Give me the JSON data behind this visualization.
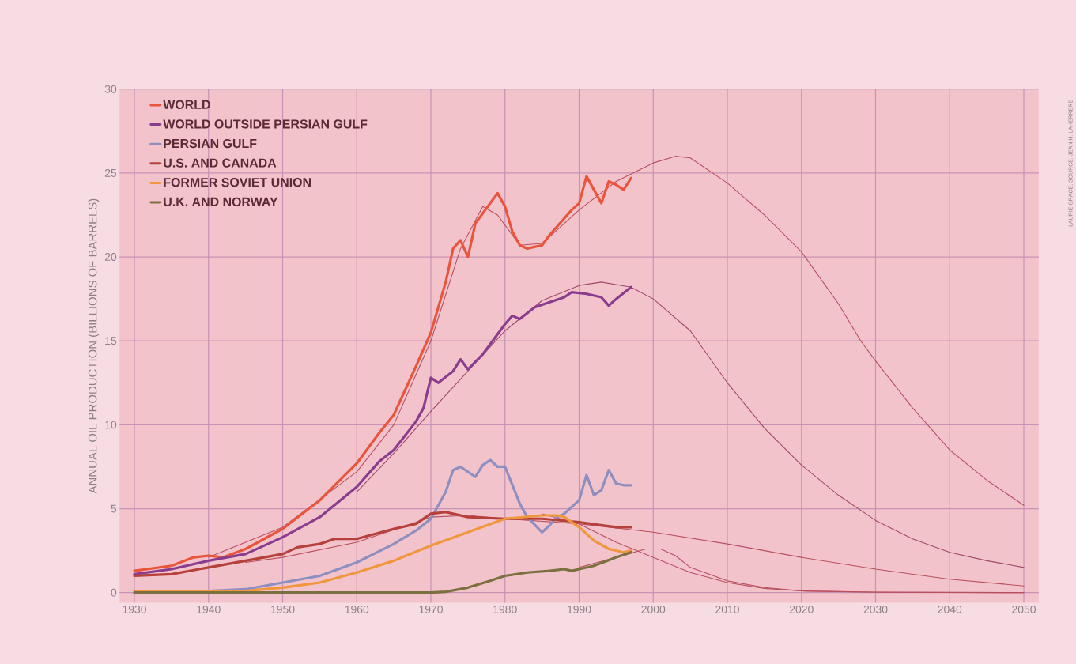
{
  "chart_data": {
    "type": "line",
    "ylabel": "ANNUAL OIL PRODUCTION (BILLIONS OF BARRELS)",
    "annotations": [
      "LAURIE GRACE; SOURCE: JEAN H. LAHERRERE"
    ],
    "xlim": [
      1928,
      2052
    ],
    "ylim": [
      -0.6,
      30
    ],
    "xticks": [
      1930,
      1940,
      1950,
      1960,
      1970,
      1980,
      1990,
      2000,
      2010,
      2020,
      2030,
      2040,
      2050
    ],
    "yticks": [
      0,
      5,
      10,
      15,
      20,
      25,
      30
    ],
    "grid": true,
    "legend": "top left",
    "line_style": "solid",
    "series": [
      {
        "color": "#b8505f",
        "x": [
          1940,
          1950,
          1960,
          1965,
          1970,
          1974,
          1977,
          1979,
          1982,
          1985,
          1990,
          1995,
          2000,
          2003,
          2005,
          2010,
          2015,
          2020,
          2025,
          2028,
          2030,
          2035,
          2040,
          2045,
          2050
        ],
        "values": [
          2.1,
          3.9,
          7.2,
          10.0,
          15.0,
          20.5,
          23.0,
          22.5,
          20.7,
          20.8,
          22.8,
          24.5,
          25.6,
          26.0,
          25.9,
          24.4,
          22.5,
          20.3,
          17.2,
          15.0,
          13.8,
          11.0,
          8.5,
          6.7,
          5.2
        ]
      },
      {
        "color": "#a04a6a",
        "x": [
          1960,
          1965,
          1970,
          1975,
          1980,
          1985,
          1990,
          1993,
          1997,
          2000,
          2005,
          2010,
          2015,
          2020,
          2025,
          2030,
          2035,
          2040,
          2045,
          2050
        ],
        "values": [
          6.0,
          8.3,
          10.8,
          13.2,
          15.6,
          17.4,
          18.3,
          18.5,
          18.2,
          17.5,
          15.6,
          12.5,
          9.8,
          7.6,
          5.8,
          4.3,
          3.2,
          2.4,
          1.9,
          1.5
        ]
      },
      {
        "color": "#b8505f",
        "x": [
          1945,
          1950,
          1960,
          1970,
          1975,
          1980,
          1990,
          2000,
          2010,
          2020,
          2030,
          2040,
          2050
        ],
        "values": [
          1.8,
          2.1,
          3.0,
          4.5,
          4.6,
          4.4,
          4.1,
          3.6,
          2.9,
          2.1,
          1.4,
          0.8,
          0.4
        ]
      },
      {
        "color": "#b8505f",
        "x": [
          1985,
          1990,
          1995,
          2000,
          2005,
          2010,
          2015,
          2020,
          2030,
          2050
        ],
        "values": [
          4.7,
          4.1,
          3.0,
          2.1,
          1.2,
          0.6,
          0.25,
          0.1,
          0.03,
          0
        ]
      },
      {
        "color": "#b8505f",
        "x": [
          1990,
          1995,
          1999,
          2001,
          2003,
          2005,
          2010,
          2015,
          2020,
          2030,
          2050
        ],
        "values": [
          1.5,
          2.1,
          2.6,
          2.6,
          2.2,
          1.5,
          0.7,
          0.3,
          0.1,
          0.02,
          0
        ]
      },
      {
        "name": "WORLD",
        "color": "#e8553a",
        "x": [
          1930,
          1935,
          1938,
          1940,
          1942,
          1945,
          1950,
          1955,
          1960,
          1963,
          1965,
          1968,
          1970,
          1972,
          1973,
          1974,
          1975,
          1976,
          1977,
          1979,
          1980,
          1981,
          1982,
          1983,
          1985,
          1986,
          1988,
          1989,
          1990,
          1991,
          1992,
          1993,
          1994,
          1995,
          1996,
          1997
        ],
        "values": [
          1.3,
          1.6,
          2.1,
          2.2,
          2.1,
          2.6,
          3.8,
          5.5,
          7.7,
          9.5,
          10.6,
          13.5,
          15.5,
          18.5,
          20.5,
          21.0,
          20.0,
          22.0,
          22.6,
          23.8,
          23.0,
          21.5,
          20.7,
          20.5,
          20.7,
          21.3,
          22.3,
          22.8,
          23.2,
          24.8,
          24.0,
          23.2,
          24.5,
          24.3,
          24.0,
          24.7
        ]
      },
      {
        "name": "WORLD OUTSIDE PERSIAN GULF",
        "color": "#8a3d8f",
        "x": [
          1930,
          1935,
          1940,
          1945,
          1950,
          1955,
          1960,
          1963,
          1965,
          1968,
          1969,
          1970,
          1971,
          1973,
          1974,
          1975,
          1977,
          1980,
          1981,
          1982,
          1984,
          1986,
          1988,
          1989,
          1991,
          1993,
          1994,
          1995,
          1997
        ],
        "values": [
          1.1,
          1.4,
          1.9,
          2.3,
          3.3,
          4.5,
          6.3,
          7.8,
          8.5,
          10.2,
          11.0,
          12.8,
          12.5,
          13.2,
          13.9,
          13.3,
          14.2,
          16.0,
          16.5,
          16.3,
          17.0,
          17.3,
          17.6,
          17.9,
          17.8,
          17.6,
          17.1,
          17.5,
          18.2
        ]
      },
      {
        "name": "PERSIAN GULF",
        "color": "#8c8fc0",
        "x": [
          1930,
          1940,
          1945,
          1950,
          1955,
          1960,
          1965,
          1968,
          1970,
          1972,
          1973,
          1974,
          1976,
          1977,
          1978,
          1979,
          1980,
          1981,
          1982,
          1983,
          1985,
          1986,
          1987,
          1988,
          1989,
          1990,
          1991,
          1992,
          1993,
          1994,
          1995,
          1996,
          1997
        ],
        "values": [
          0,
          0.1,
          0.2,
          0.6,
          1.0,
          1.8,
          2.9,
          3.7,
          4.4,
          6.0,
          7.3,
          7.5,
          6.9,
          7.6,
          7.9,
          7.5,
          7.5,
          6.4,
          5.3,
          4.5,
          3.6,
          4.0,
          4.5,
          4.7,
          5.1,
          5.5,
          7.0,
          5.8,
          6.1,
          7.3,
          6.5,
          6.4,
          6.4
        ]
      },
      {
        "name": "U.S. AND CANADA",
        "color": "#b5413a",
        "x": [
          1930,
          1935,
          1940,
          1945,
          1950,
          1952,
          1955,
          1957,
          1960,
          1965,
          1968,
          1970,
          1972,
          1975,
          1980,
          1985,
          1990,
          1995,
          1997
        ],
        "values": [
          1.0,
          1.1,
          1.5,
          1.9,
          2.3,
          2.7,
          2.9,
          3.2,
          3.2,
          3.8,
          4.1,
          4.7,
          4.8,
          4.5,
          4.4,
          4.4,
          4.2,
          3.9,
          3.9
        ]
      },
      {
        "name": "FORMER SOVIET UNION",
        "color": "#f0963c",
        "x": [
          1930,
          1945,
          1950,
          1955,
          1960,
          1965,
          1970,
          1975,
          1980,
          1985,
          1987,
          1988,
          1990,
          1992,
          1994,
          1996,
          1997
        ],
        "values": [
          0.1,
          0.1,
          0.3,
          0.6,
          1.2,
          1.9,
          2.8,
          3.6,
          4.4,
          4.6,
          4.6,
          4.5,
          3.9,
          3.1,
          2.6,
          2.4,
          2.5
        ]
      },
      {
        "name": "U.K. AND NORWAY",
        "color": "#7a7040",
        "x": [
          1930,
          1970,
          1972,
          1975,
          1978,
          1980,
          1983,
          1986,
          1988,
          1989,
          1990,
          1992,
          1995,
          1997
        ],
        "values": [
          0,
          0,
          0.05,
          0.3,
          0.7,
          1.0,
          1.2,
          1.3,
          1.4,
          1.3,
          1.4,
          1.6,
          2.1,
          2.4
        ]
      }
    ]
  }
}
